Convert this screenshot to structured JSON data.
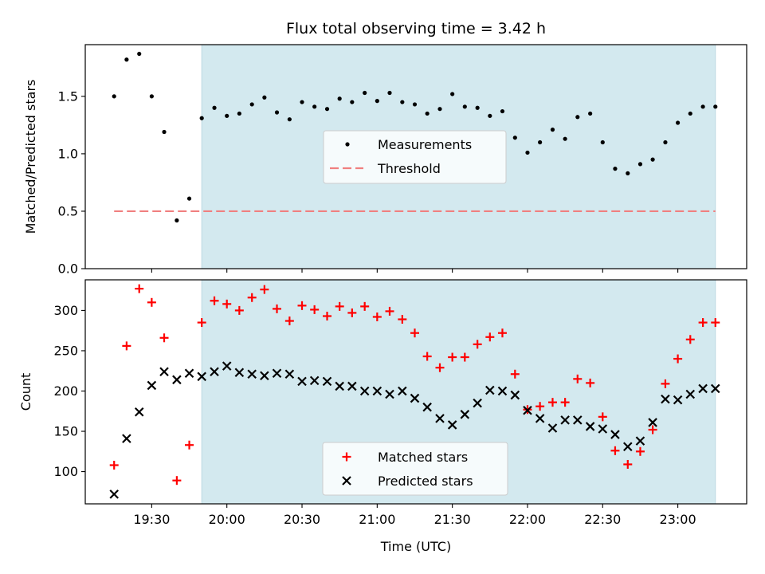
{
  "chart_data": [
    {
      "type": "scatter",
      "title": "Flux total observing time = 3.42 h",
      "xlabel": "",
      "ylabel": "Matched/Predicted stars",
      "xlim": [
        19.058,
        23.458
      ],
      "ylim": [
        0,
        1.95
      ],
      "yticks": [
        0.0,
        0.5,
        1.0,
        1.5
      ],
      "ytick_labels": [
        "0.0",
        "0.5",
        "1.0",
        "1.5"
      ],
      "shaded_region": {
        "from": 19.833,
        "to": 23.25,
        "color": "#d3e9ef"
      },
      "threshold": {
        "name": "Threshold",
        "value": 0.5,
        "x_from": 19.25,
        "x_to": 23.25,
        "color": "#f08080"
      },
      "legend": {
        "position": "center",
        "entries": [
          "Measurements",
          "Threshold"
        ]
      },
      "series": [
        {
          "name": "Measurements",
          "marker": "dot",
          "color": "#000000",
          "x": [
            19.25,
            19.333,
            19.417,
            19.5,
            19.583,
            19.667,
            19.75,
            19.833,
            19.917,
            20.0,
            20.083,
            20.167,
            20.25,
            20.333,
            20.417,
            20.5,
            20.583,
            20.667,
            20.75,
            20.833,
            20.917,
            21.0,
            21.083,
            21.167,
            21.25,
            21.333,
            21.417,
            21.5,
            21.583,
            21.667,
            21.75,
            21.833,
            21.917,
            22.0,
            22.083,
            22.167,
            22.25,
            22.333,
            22.417,
            22.5,
            22.583,
            22.667,
            22.75,
            22.833,
            22.917,
            23.0,
            23.083,
            23.167,
            23.25
          ],
          "y": [
            1.5,
            1.82,
            1.87,
            1.5,
            1.19,
            0.42,
            0.61,
            1.31,
            1.4,
            1.33,
            1.35,
            1.43,
            1.49,
            1.36,
            1.3,
            1.45,
            1.41,
            1.39,
            1.48,
            1.45,
            1.53,
            1.46,
            1.53,
            1.45,
            1.43,
            1.35,
            1.39,
            1.52,
            1.41,
            1.4,
            1.33,
            1.37,
            1.14,
            1.01,
            1.1,
            1.21,
            1.13,
            1.32,
            1.35,
            1.1,
            0.87,
            0.83,
            0.91,
            0.95,
            1.1,
            1.27,
            1.35,
            1.41,
            1.41
          ]
        }
      ]
    },
    {
      "type": "scatter",
      "title": "",
      "xlabel": "Time (UTC)",
      "ylabel": "Count",
      "xlim": [
        19.058,
        23.458
      ],
      "ylim": [
        60,
        338
      ],
      "xticks": [
        19.5,
        20.0,
        20.5,
        21.0,
        21.5,
        22.0,
        22.5,
        23.0
      ],
      "xtick_labels": [
        "19:30",
        "20:00",
        "20:30",
        "21:00",
        "21:30",
        "22:00",
        "22:30",
        "23:00"
      ],
      "yticks": [
        100,
        150,
        200,
        250,
        300
      ],
      "ytick_labels": [
        "100",
        "150",
        "200",
        "250",
        "300"
      ],
      "shaded_region": {
        "from": 19.833,
        "to": 23.25,
        "color": "#d3e9ef"
      },
      "legend": {
        "position": "bottom-center",
        "entries": [
          "Matched stars",
          "Predicted stars"
        ]
      },
      "series": [
        {
          "name": "Matched stars",
          "marker": "plus",
          "color": "#ff0000",
          "x": [
            19.25,
            19.333,
            19.417,
            19.5,
            19.583,
            19.667,
            19.75,
            19.833,
            19.917,
            20.0,
            20.083,
            20.167,
            20.25,
            20.333,
            20.417,
            20.5,
            20.583,
            20.667,
            20.75,
            20.833,
            20.917,
            21.0,
            21.083,
            21.167,
            21.25,
            21.333,
            21.417,
            21.5,
            21.583,
            21.667,
            21.75,
            21.833,
            21.917,
            22.0,
            22.083,
            22.167,
            22.25,
            22.333,
            22.417,
            22.5,
            22.583,
            22.667,
            22.75,
            22.833,
            22.917,
            23.0,
            23.083,
            23.167,
            23.25
          ],
          "y": [
            108,
            256,
            327,
            310,
            266,
            89,
            133,
            285,
            312,
            308,
            300,
            316,
            326,
            302,
            287,
            306,
            301,
            293,
            305,
            297,
            305,
            292,
            299,
            289,
            272,
            243,
            229,
            242,
            242,
            258,
            267,
            272,
            221,
            177,
            181,
            186,
            186,
            215,
            210,
            168,
            126,
            109,
            125,
            152,
            209,
            240,
            264,
            285,
            285
          ]
        },
        {
          "name": "Predicted stars",
          "marker": "x",
          "color": "#000000",
          "x": [
            19.25,
            19.333,
            19.417,
            19.5,
            19.583,
            19.667,
            19.75,
            19.833,
            19.917,
            20.0,
            20.083,
            20.167,
            20.25,
            20.333,
            20.417,
            20.5,
            20.583,
            20.667,
            20.75,
            20.833,
            20.917,
            21.0,
            21.083,
            21.167,
            21.25,
            21.333,
            21.417,
            21.5,
            21.583,
            21.667,
            21.75,
            21.833,
            21.917,
            22.0,
            22.083,
            22.167,
            22.25,
            22.333,
            22.417,
            22.5,
            22.583,
            22.667,
            22.75,
            22.833,
            22.917,
            23.0,
            23.083,
            23.167,
            23.25
          ],
          "y": [
            72,
            141,
            174,
            207,
            224,
            214,
            222,
            218,
            224,
            231,
            223,
            221,
            219,
            222,
            221,
            212,
            213,
            212,
            206,
            206,
            200,
            200,
            196,
            200,
            191,
            180,
            166,
            158,
            171,
            185,
            201,
            200,
            195,
            176,
            166,
            154,
            164,
            164,
            156,
            153,
            146,
            131,
            138,
            161,
            190,
            189,
            196,
            203,
            203
          ]
        }
      ]
    }
  ]
}
